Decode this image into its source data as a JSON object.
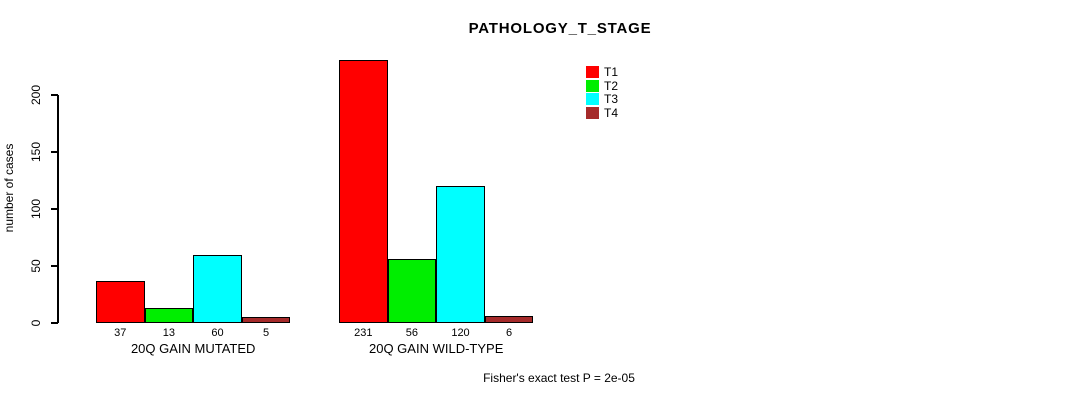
{
  "chart_data": {
    "type": "bar",
    "title": "PATHOLOGY_T_STAGE",
    "xlabel": "",
    "ylabel": "number of cases",
    "ylim": [
      0,
      200
    ],
    "yticks": [
      0,
      50,
      100,
      150,
      200
    ],
    "grid": false,
    "legend_position": "top-right-of-plot",
    "categories": [
      "20Q GAIN MUTATED",
      "20Q GAIN WILD-TYPE"
    ],
    "series": [
      {
        "name": "T1",
        "color": "#ff0000",
        "values": [
          37,
          231
        ]
      },
      {
        "name": "T2",
        "color": "#00ee00",
        "values": [
          13,
          56
        ]
      },
      {
        "name": "T3",
        "color": "#00ffff",
        "values": [
          60,
          120
        ]
      },
      {
        "name": "T4",
        "color": "#a52a2a",
        "values": [
          5,
          6
        ]
      }
    ],
    "bar_value_labels": {
      "20Q GAIN MUTATED": [
        "37",
        "13",
        "60",
        "5"
      ],
      "20Q GAIN WILD-TYPE": [
        "231",
        "56",
        "120",
        "6"
      ]
    },
    "annotation": "Fisher's exact test P = 2e-05"
  }
}
